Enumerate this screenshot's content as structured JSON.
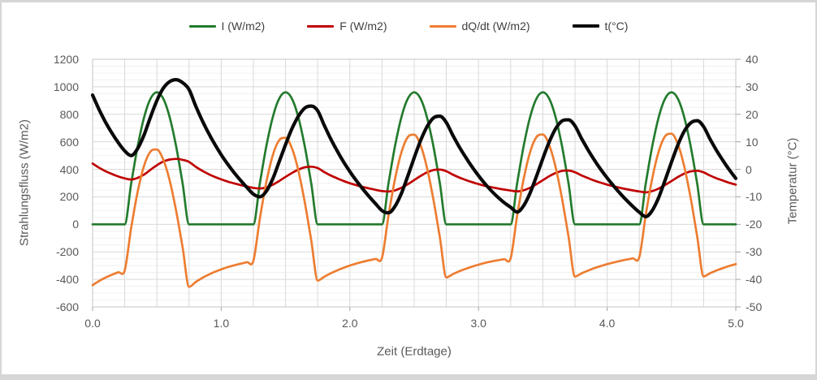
{
  "frame": {
    "background": "#ffffff",
    "border_color": "#d6d6d6"
  },
  "legend": {
    "items": [
      {
        "label": "I (W/m2)",
        "color": "#237b2d"
      },
      {
        "label": "F (W/m2)",
        "color": "#c00000"
      },
      {
        "label": "dQ/dt (W/m2)",
        "color": "#ed7d31"
      },
      {
        "label": "t(°C)",
        "color": "#0a0a0a"
      }
    ]
  },
  "chart_data": {
    "type": "line",
    "title": "",
    "xlabel": "Zeit (Erdtage)",
    "y_left_label": "Strahlungsfluss (W/m2)",
    "y_right_label": "Temperatur (°C)",
    "x_range": [
      0,
      5
    ],
    "x_tick_labels": [
      "0.0",
      "1.0",
      "2.0",
      "3.0",
      "4.0",
      "5.0"
    ],
    "left_axis": {
      "range": [
        -600,
        1200
      ],
      "tick_step": 200,
      "minor_step": 50,
      "ticks": [
        1200,
        1000,
        800,
        600,
        400,
        200,
        0,
        -200,
        -400,
        -600
      ]
    },
    "right_axis": {
      "range": [
        -50,
        40
      ],
      "tick_step": 10,
      "ticks": [
        40,
        30,
        20,
        10,
        0,
        -10,
        -20,
        -30,
        -40,
        -50
      ]
    },
    "grid": {
      "horizontal_major": true,
      "horizontal_minor": true,
      "vertical_step": 0.25,
      "major_color": "#d9d9d9",
      "minor_color": "#f0f0f0",
      "border_color": "#c6c6c6"
    },
    "legend_position": "top",
    "x_step": 0.05,
    "x": [
      0,
      0.05,
      0.1,
      0.15,
      0.2,
      0.25,
      0.3,
      0.35,
      0.4,
      0.45,
      0.5,
      0.55,
      0.6,
      0.65,
      0.7,
      0.75,
      0.8,
      0.85,
      0.9,
      0.95,
      1,
      1.05,
      1.1,
      1.15,
      1.2,
      1.25,
      1.3,
      1.35,
      1.4,
      1.45,
      1.5,
      1.55,
      1.6,
      1.65,
      1.7,
      1.75,
      1.8,
      1.85,
      1.9,
      1.95,
      2,
      2.05,
      2.1,
      2.15,
      2.2,
      2.25,
      2.3,
      2.35,
      2.4,
      2.45,
      2.5,
      2.55,
      2.6,
      2.65,
      2.7,
      2.75,
      2.8,
      2.85,
      2.9,
      2.95,
      3,
      3.05,
      3.1,
      3.15,
      3.2,
      3.25,
      3.3,
      3.35,
      3.4,
      3.45,
      3.5,
      3.55,
      3.6,
      3.65,
      3.7,
      3.75,
      3.8,
      3.85,
      3.9,
      3.95,
      4,
      4.05,
      4.1,
      4.15,
      4.2,
      4.25,
      4.3,
      4.35,
      4.4,
      4.45,
      4.5,
      4.55,
      4.6,
      4.65,
      4.7,
      4.75,
      4.8,
      4.85,
      4.9,
      4.95,
      5
    ],
    "series": [
      {
        "name": "I (W/m2)",
        "axis": "left",
        "color": "#237b2d",
        "width": 2.7,
        "values": [
          0,
          0,
          0,
          0,
          0,
          0,
          296,
          564,
          777,
          913,
          960,
          913,
          777,
          564,
          296,
          0,
          0,
          0,
          0,
          0,
          0,
          0,
          0,
          0,
          0,
          0,
          296,
          564,
          777,
          913,
          960,
          913,
          777,
          564,
          296,
          0,
          0,
          0,
          0,
          0,
          0,
          0,
          0,
          0,
          0,
          0,
          296,
          564,
          777,
          913,
          960,
          913,
          777,
          564,
          296,
          0,
          0,
          0,
          0,
          0,
          0,
          0,
          0,
          0,
          0,
          0,
          296,
          564,
          777,
          913,
          960,
          913,
          777,
          564,
          296,
          0,
          0,
          0,
          0,
          0,
          0,
          0,
          0,
          0,
          0,
          0,
          296,
          564,
          777,
          913,
          960,
          913,
          777,
          564,
          296,
          0,
          0,
          0,
          0,
          0,
          0
        ]
      },
      {
        "name": "F (W/m2)",
        "axis": "left",
        "color": "#c00000",
        "width": 2.7,
        "values": [
          442,
          412,
          387,
          366,
          348,
          334,
          326,
          338,
          362,
          397,
          430,
          457,
          471,
          476,
          469,
          454,
          420,
          391,
          366,
          345,
          327,
          311,
          298,
          286,
          275,
          265,
          261,
          269,
          288,
          315,
          345,
          374,
          398,
          415,
          419,
          409,
          381,
          356,
          335,
          316,
          299,
          285,
          272,
          261,
          251,
          242,
          239,
          247,
          266,
          292,
          322,
          352,
          378,
          395,
          398,
          386,
          362,
          341,
          323,
          307,
          293,
          280,
          270,
          261,
          253,
          246,
          240,
          248,
          266,
          292,
          321,
          350,
          374,
          389,
          391,
          379,
          356,
          337,
          318,
          303,
          289,
          277,
          266,
          256,
          247,
          239,
          233,
          242,
          260,
          286,
          315,
          344,
          369,
          385,
          390,
          378,
          355,
          335,
          318,
          302,
          289
        ]
      },
      {
        "name": "dQ/dt (W/m2)",
        "axis": "left",
        "color": "#ed7d31",
        "width": 2.7,
        "values": [
          -442,
          -412,
          -387,
          -366,
          -348,
          -334,
          -25,
          234,
          426,
          529,
          544,
          469,
          317,
          96,
          -168,
          -454,
          -420,
          -391,
          -366,
          -345,
          -327,
          -311,
          -298,
          -286,
          -275,
          -265,
          40,
          303,
          500,
          611,
          629,
          552,
          390,
          157,
          -118,
          -409,
          -381,
          -356,
          -335,
          -316,
          -299,
          -285,
          -272,
          -261,
          -251,
          -242,
          62,
          325,
          522,
          634,
          652,
          574,
          410,
          177,
          -97,
          -386,
          -362,
          -341,
          -323,
          -307,
          -293,
          -280,
          -270,
          -261,
          -253,
          -246,
          61,
          324,
          522,
          634,
          653,
          576,
          414,
          183,
          -90,
          -379,
          -356,
          -337,
          -318,
          -303,
          -289,
          -277,
          -266,
          -256,
          -247,
          -239,
          68,
          330,
          528,
          640,
          659,
          582,
          419,
          187,
          -89,
          -378,
          -355,
          -335,
          -318,
          -302,
          -289
        ]
      },
      {
        "name": "t(°C)",
        "axis": "right",
        "color": "#0a0a0a",
        "width": 4.2,
        "values": [
          27,
          21.8,
          17.2,
          13.2,
          9.7,
          6.7,
          5,
          7.5,
          12.5,
          19,
          25,
          29.5,
          31.9,
          32.6,
          31.5,
          29,
          23.2,
          18,
          13.3,
          9.1,
          5.3,
          1.9,
          -1.2,
          -4,
          -6.6,
          -9,
          -10,
          -8,
          -3.5,
          2.7,
          9,
          14.8,
          19.3,
          22.3,
          23,
          21.3,
          16.1,
          11.2,
          6.8,
          2.8,
          -0.8,
          -4.1,
          -7.1,
          -9.9,
          -12.5,
          -15,
          -15.8,
          -13.5,
          -8.8,
          -2.5,
          4.2,
          10.5,
          15.5,
          18.7,
          19.3,
          17,
          12.4,
          8.2,
          4.4,
          0.9,
          -2.3,
          -5.2,
          -7.8,
          -10.1,
          -12.1,
          -13.8,
          -15.5,
          -13.3,
          -8.7,
          -2.6,
          3.9,
          10,
          14.8,
          17.6,
          18,
          15.8,
          11.3,
          7.2,
          3.4,
          0,
          -3.1,
          -6,
          -8.7,
          -11.2,
          -13.5,
          -15.6,
          -17.2,
          -15,
          -10.3,
          -4,
          2.6,
          8.9,
          13.9,
          16.9,
          17.7,
          15.5,
          11,
          6.9,
          3.2,
          -0.2,
          -3.3
        ]
      }
    ]
  }
}
